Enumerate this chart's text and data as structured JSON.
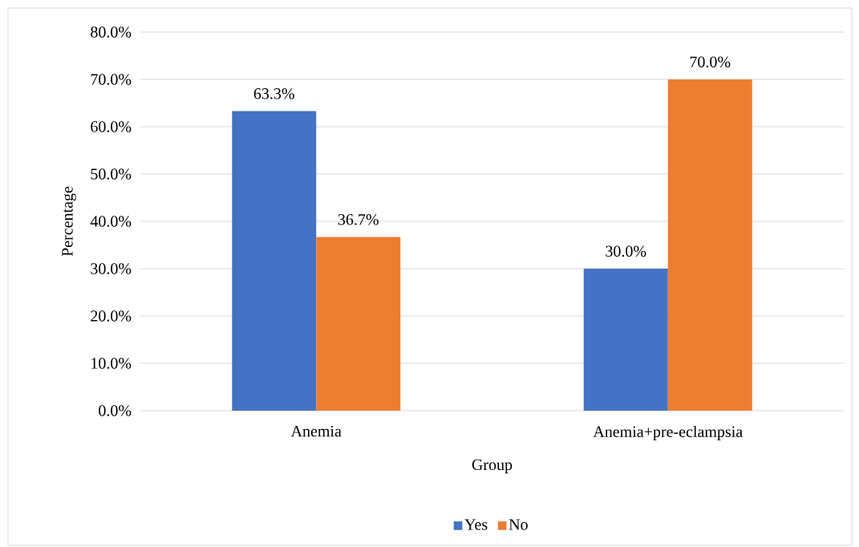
{
  "chart_data": {
    "type": "bar",
    "xlabel": "Group",
    "ylabel": "Percentage",
    "categories": [
      "Anemia",
      "Anemia+pre-eclampsia"
    ],
    "series": [
      {
        "name": "Yes",
        "color": "#4472c4",
        "values": [
          63.3,
          30.0
        ],
        "value_labels": [
          "63.3%",
          "30.0%"
        ]
      },
      {
        "name": "No",
        "color": "#ed7d31",
        "values": [
          36.7,
          70.0
        ],
        "value_labels": [
          "36.7%",
          "70.0%"
        ]
      }
    ],
    "ylim": [
      0,
      80
    ],
    "yticks": [
      {
        "value": 0,
        "label": "0.0%"
      },
      {
        "value": 10,
        "label": "10.0%"
      },
      {
        "value": 20,
        "label": "20.0%"
      },
      {
        "value": 30,
        "label": "30.0%"
      },
      {
        "value": 40,
        "label": "40.0%"
      },
      {
        "value": 50,
        "label": "50.0%"
      },
      {
        "value": 60,
        "label": "60.0%"
      },
      {
        "value": 70,
        "label": "70.0%"
      },
      {
        "value": 80,
        "label": "80.0%"
      }
    ],
    "grid": "y",
    "legend": "bottom"
  }
}
